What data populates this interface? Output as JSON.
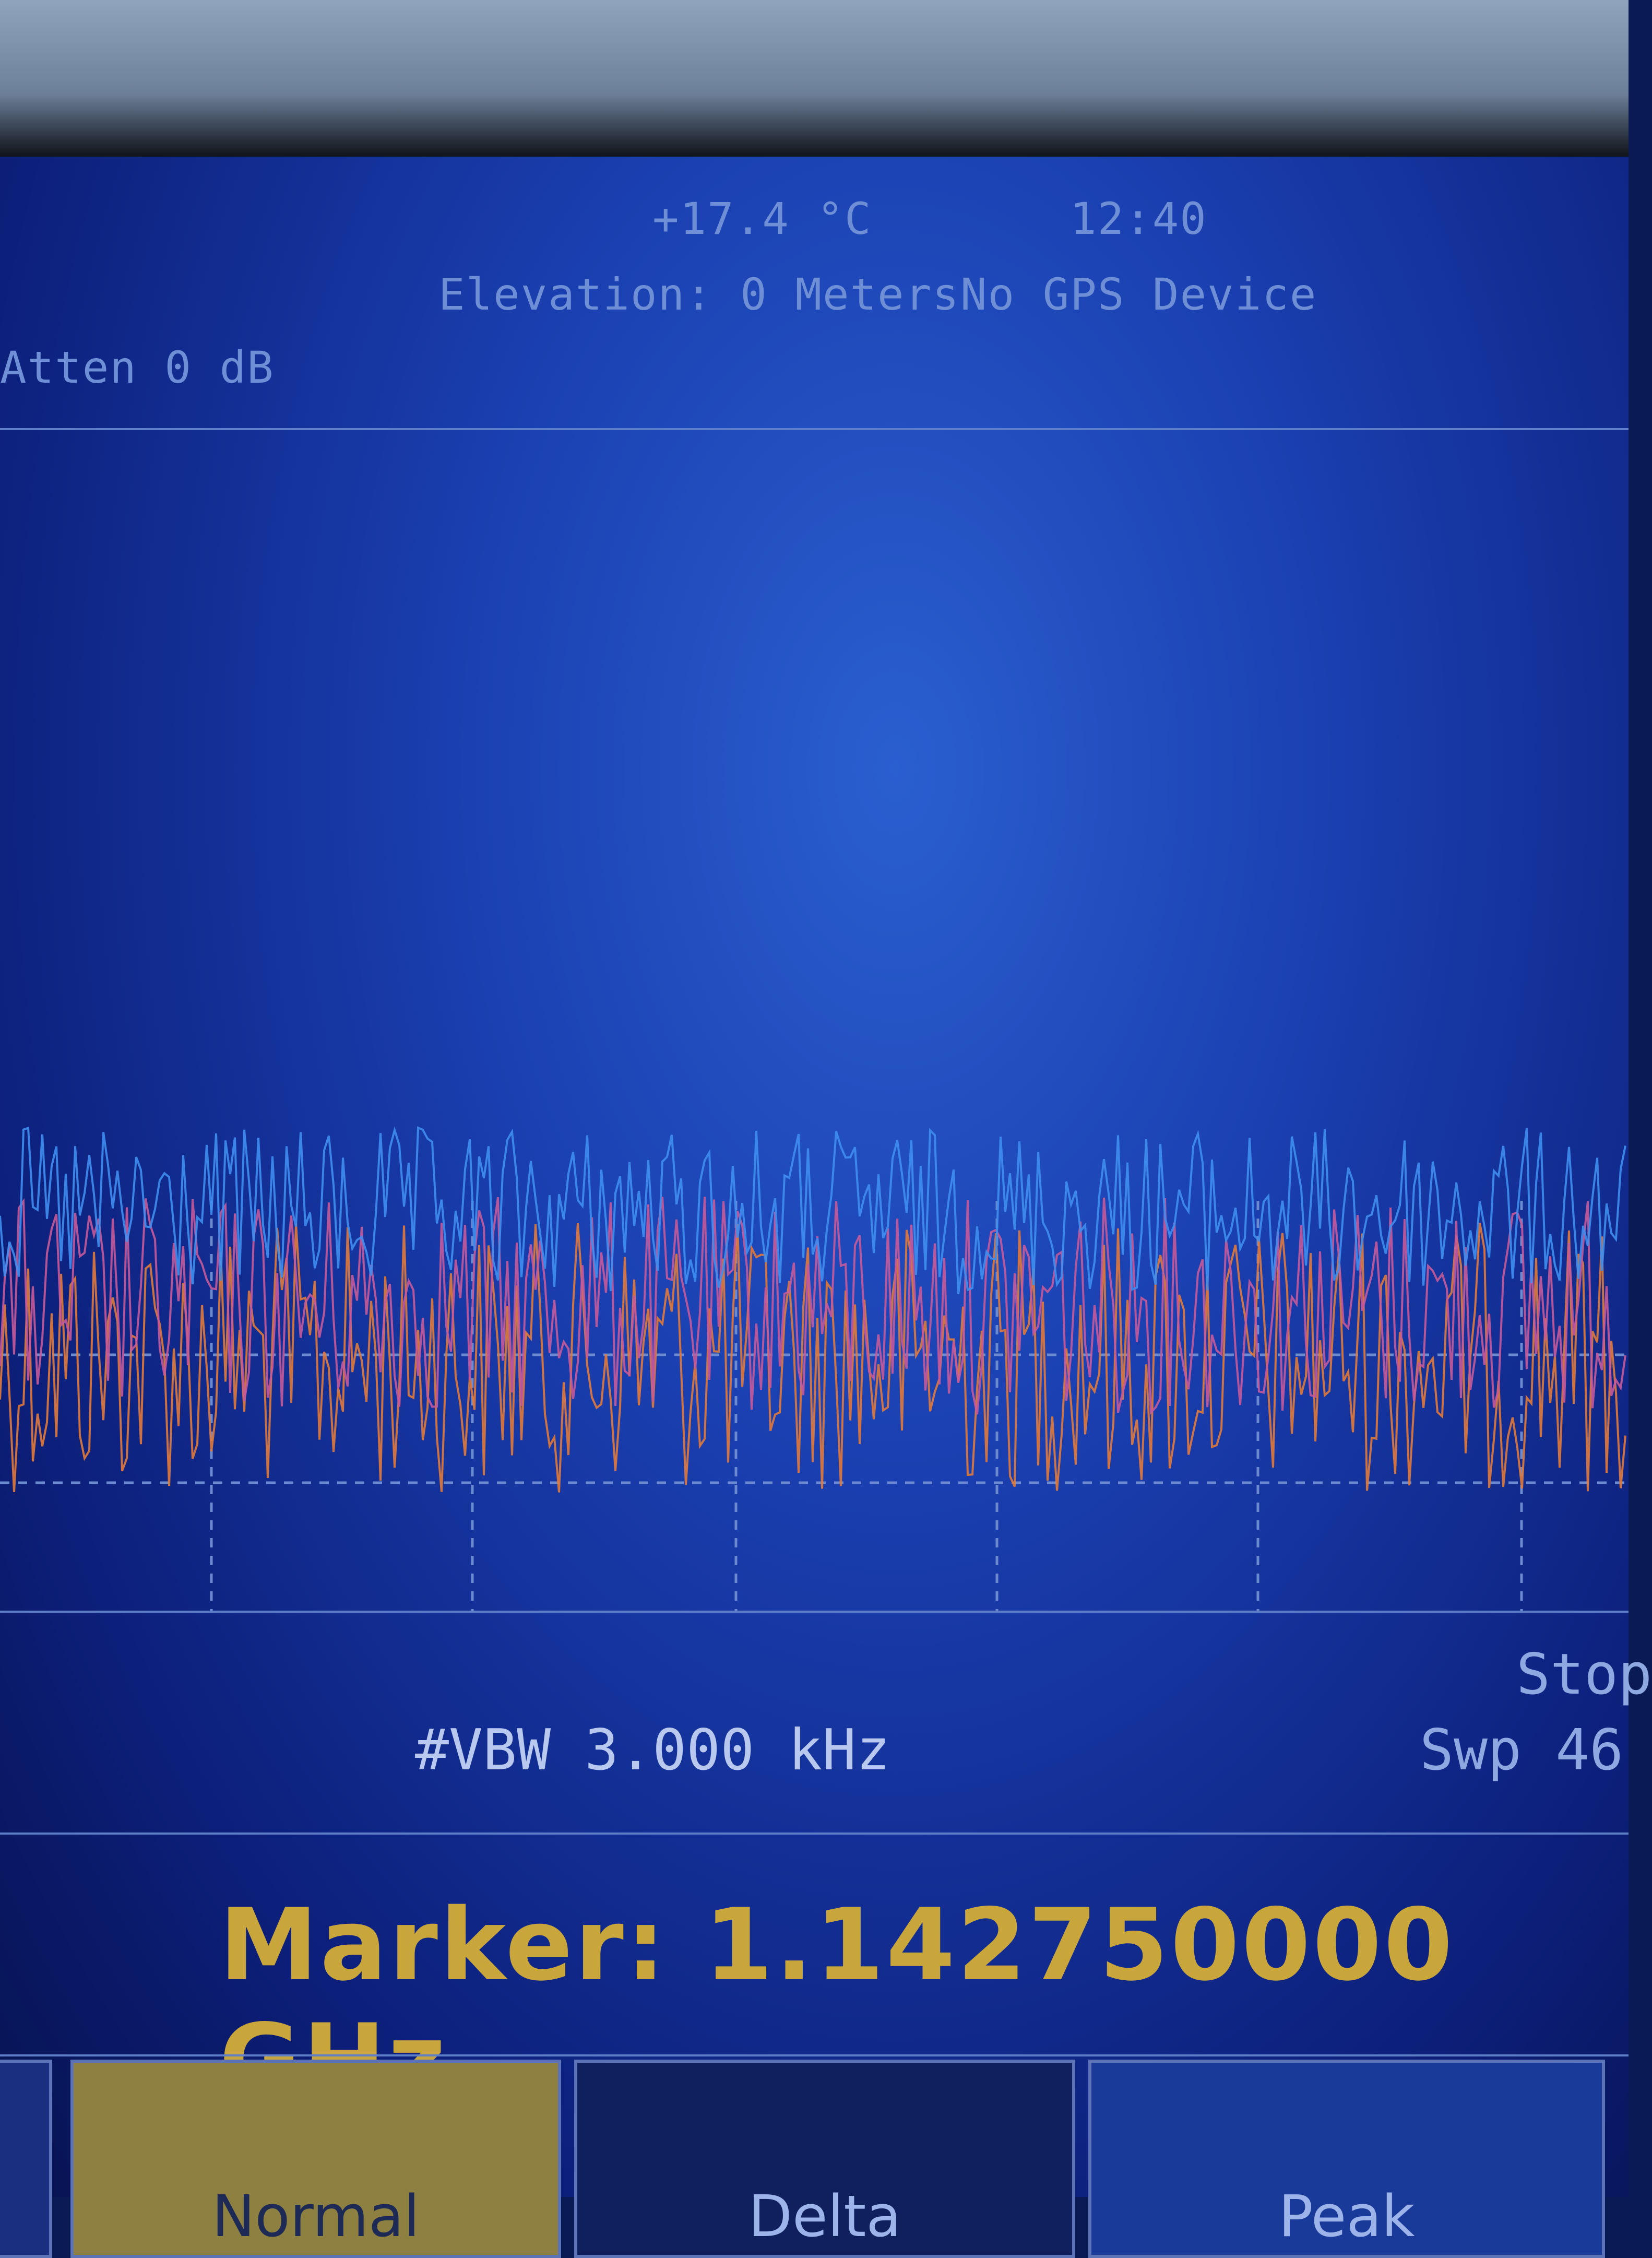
{
  "header": {
    "top_left": "+17.4 °C",
    "top_right": "12:40",
    "elevation": "Elevation: 0 Meters",
    "gps": "No GPS Device",
    "atten": "Atten 0 dB"
  },
  "plot": {
    "trace_colors": [
      "#3f8ef0",
      "#c55a9a",
      "#e07a3c"
    ],
    "grid_color": "#6b8ad0"
  },
  "footer": {
    "vbw": "#VBW 3.000 kHz",
    "stop": "Stop",
    "sweep": "Swp 46"
  },
  "marker": {
    "label": "Marker: 1.142750000 GHz"
  },
  "softkeys": [
    {
      "label": "Normal",
      "selected": true
    },
    {
      "label": "Delta",
      "selected": false
    },
    {
      "label": "Peak",
      "selected": false
    }
  ]
}
